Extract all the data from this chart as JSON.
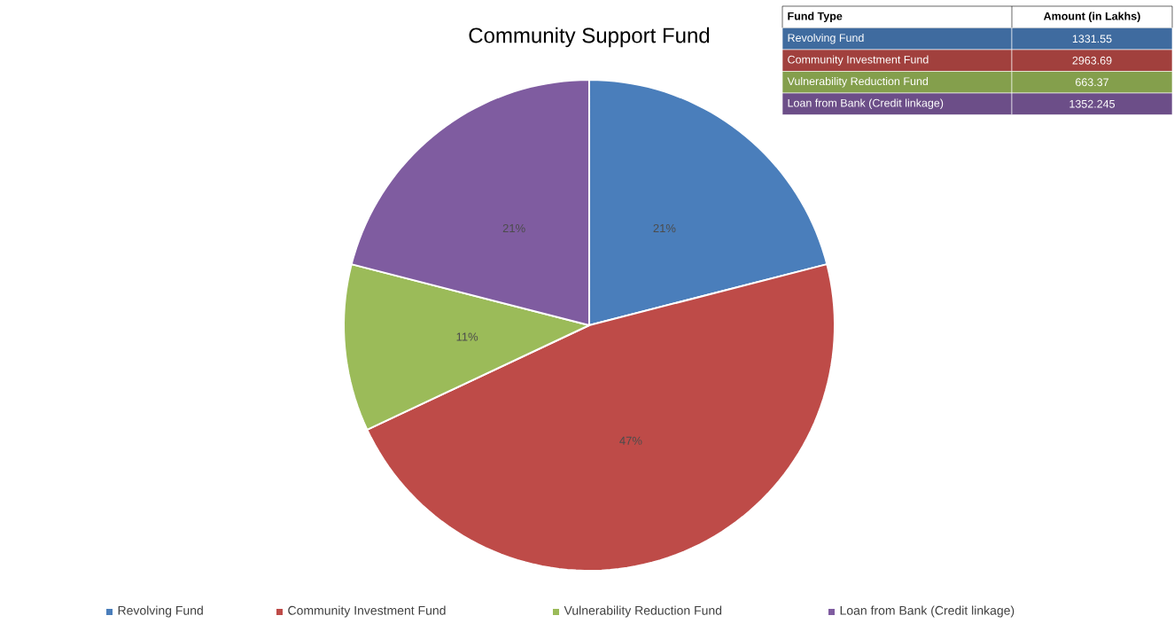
{
  "chart_data": {
    "type": "pie",
    "title": "Community Support Fund",
    "categories": [
      "Revolving Fund",
      "Community Investment Fund",
      "Vulnerability Reduction Fund",
      "Loan from Bank (Credit linkage)"
    ],
    "values": [
      21,
      47,
      11,
      21
    ],
    "value_labels": [
      "21%",
      "47%",
      "11%",
      "21%"
    ],
    "colors": [
      "#4a7ebb",
      "#be4b48",
      "#9bbb59",
      "#7f5ca0"
    ],
    "annotations": [
      "Fund Type",
      "Amount (in Lakhs)",
      "1331.55",
      "2963.69",
      "663.37",
      "1352.245"
    ],
    "legend": "bottom"
  }
}
